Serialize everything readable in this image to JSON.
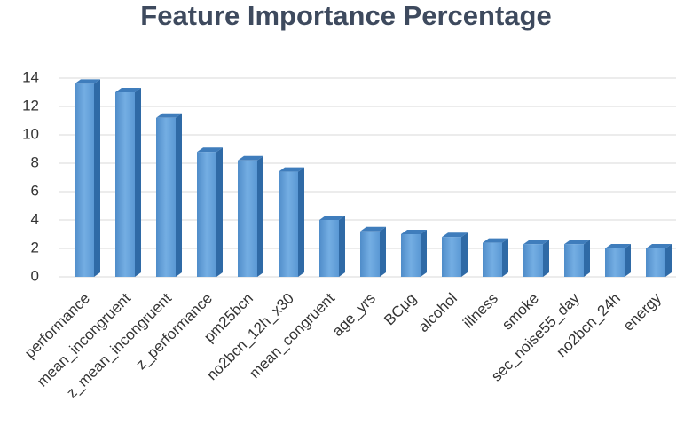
{
  "chart_data": {
    "type": "bar3d",
    "title": "Feature Importance Percentage",
    "categories": [
      "performance",
      "mean_incongruent",
      "z_mean_incongruent",
      "z_performance",
      "pm25bcn",
      "no2bcn_12h_x30",
      "mean_congruent",
      "age_yrs",
      "BCμg",
      "alcohol",
      "illness",
      "smoke",
      "sec_noise55_day",
      "no2bcn_24h",
      "energy"
    ],
    "values": [
      13.6,
      13.0,
      11.2,
      8.8,
      8.2,
      7.4,
      4.0,
      3.2,
      3.0,
      2.8,
      2.4,
      2.3,
      2.3,
      2.0,
      2.0
    ],
    "color": "#5b9bd5",
    "ylim": [
      0,
      14
    ],
    "yticks": [
      0,
      2,
      4,
      6,
      8,
      10,
      12,
      14
    ],
    "grid": true
  }
}
